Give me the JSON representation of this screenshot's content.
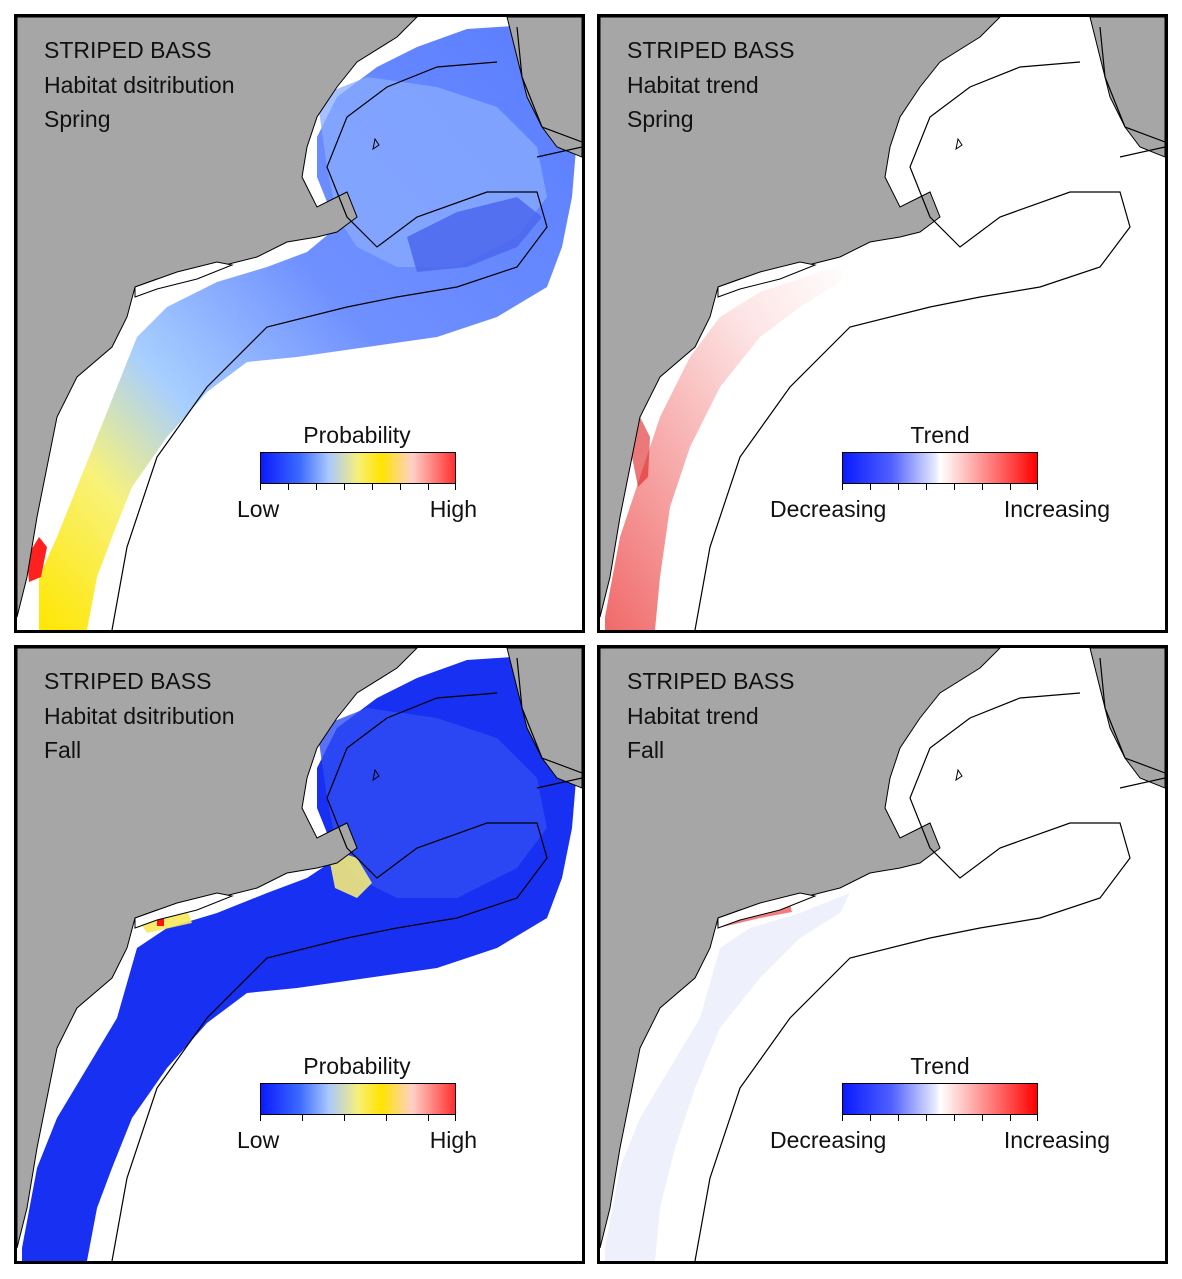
{
  "panels": [
    {
      "id": "p1",
      "title_lines": [
        "STRIPED BASS",
        "Habitat dsitribution",
        "Spring"
      ],
      "kind": "probability",
      "legend": {
        "title": "Probability",
        "low": "Low",
        "high": "High"
      }
    },
    {
      "id": "p2",
      "title_lines": [
        "STRIPED BASS",
        "Habitat trend",
        "Spring"
      ],
      "kind": "trend",
      "legend": {
        "title": "Trend",
        "low": "Decreasing",
        "high": "Increasing"
      }
    },
    {
      "id": "p3",
      "title_lines": [
        "STRIPED BASS",
        "Habitat dsitribution",
        "Fall"
      ],
      "kind": "probability",
      "legend": {
        "title": "Probability",
        "low": "Low",
        "high": "High"
      }
    },
    {
      "id": "p4",
      "title_lines": [
        "STRIPED BASS",
        "Habitat trend",
        "Fall"
      ],
      "kind": "trend",
      "legend": {
        "title": "Trend",
        "low": "Decreasing",
        "high": "Increasing"
      }
    }
  ],
  "colors": {
    "land": "#a6a6a6",
    "water": "#ffffff",
    "contour": "#000000",
    "prob_low": "#0a1aff",
    "prob_mid": "#ffe400",
    "prob_high": "#ff0000",
    "trend_decreasing": "#0a1aff",
    "trend_increasing": "#ff0000"
  }
}
